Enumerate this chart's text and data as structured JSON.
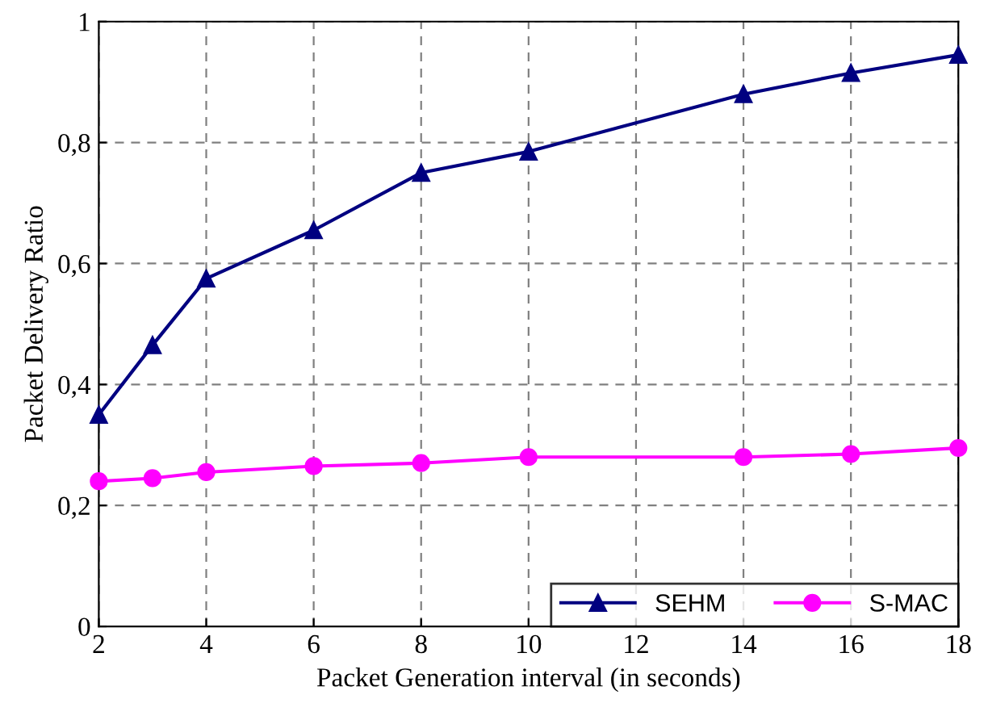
{
  "chart_data": {
    "type": "line",
    "xlabel": "Packet Generation interval (in seconds)",
    "ylabel": "Packet Delivery Ratio",
    "x": [
      2,
      3,
      4,
      6,
      8,
      10,
      14,
      16,
      18
    ],
    "series": [
      {
        "name": "SEHM",
        "color": "#000080",
        "marker": "triangle",
        "values": [
          0.35,
          0.465,
          0.575,
          0.655,
          0.75,
          0.785,
          0.88,
          0.915,
          0.945
        ]
      },
      {
        "name": "S-MAC",
        "color": "#ff00ff",
        "marker": "circle",
        "values": [
          0.24,
          0.245,
          0.255,
          0.265,
          0.27,
          0.28,
          0.28,
          0.285,
          0.295
        ]
      }
    ],
    "xlim": [
      2,
      18
    ],
    "xticks": [
      2,
      4,
      6,
      8,
      10,
      12,
      14,
      16,
      18
    ],
    "ylim": [
      0,
      1
    ],
    "yticks": [
      0,
      {
        "value": 0.2,
        "label": "0,2"
      },
      {
        "value": 0.4,
        "label": "0,4"
      },
      {
        "value": 0.6,
        "label": "0,6"
      },
      {
        "value": 0.8,
        "label": "0,8"
      },
      1
    ],
    "grid": true,
    "legend": "bottom right",
    "line_style": "solid"
  }
}
